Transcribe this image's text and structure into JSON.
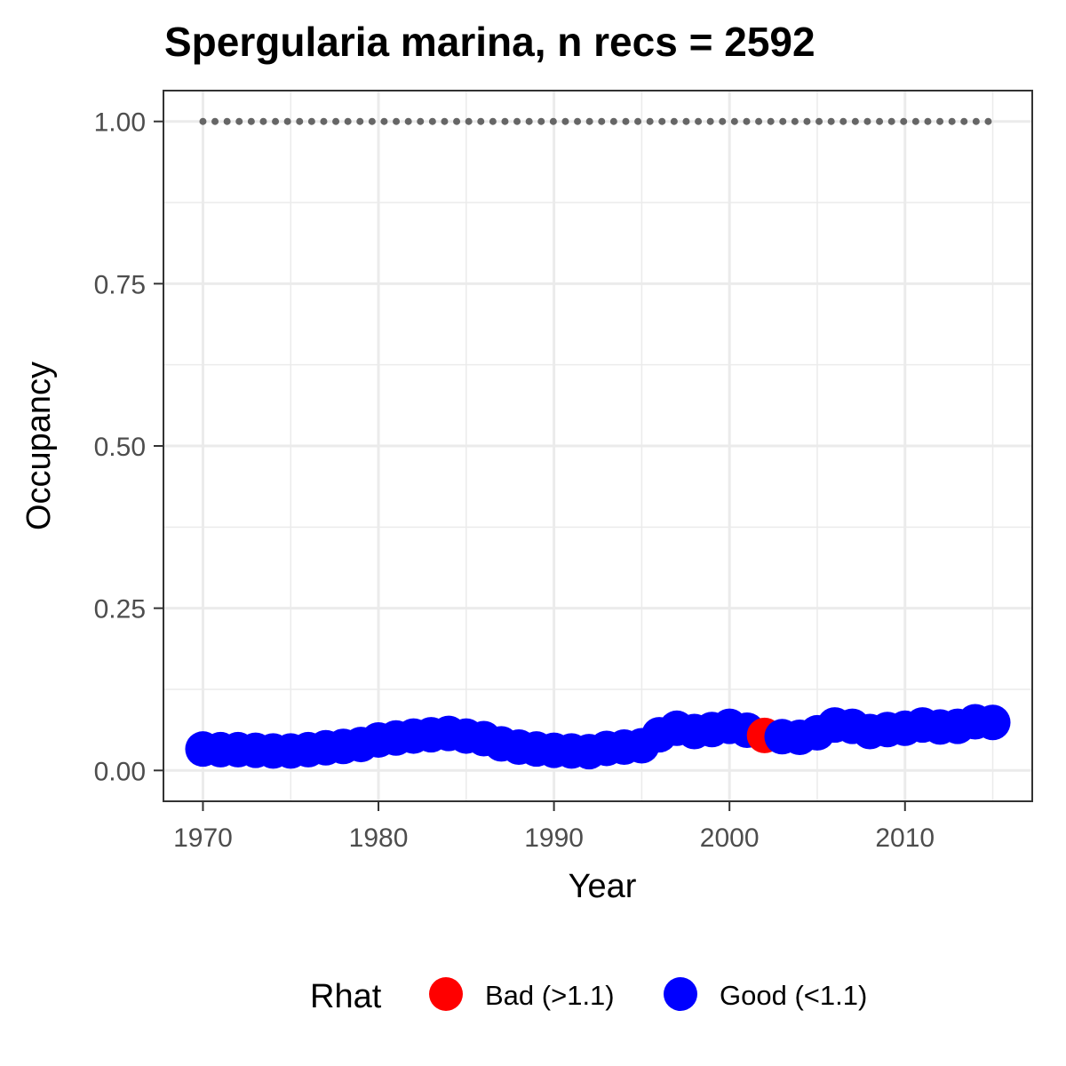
{
  "chart_data": {
    "type": "scatter",
    "title": "Spergularia marina, n recs = 2592",
    "xlabel": "Year",
    "ylabel": "Occupancy",
    "xlim": [
      1967.8,
      1917.2
    ],
    "ylim": [
      -0.0475,
      1.0475
    ],
    "x_ticks": [
      1970,
      1980,
      1990,
      2000,
      2010
    ],
    "x_tick_labels": [
      "1970",
      "1980",
      "1990",
      "2000",
      "2010"
    ],
    "y_ticks": [
      0,
      0.25,
      0.5,
      0.75,
      1.0
    ],
    "y_tick_labels": [
      "0.00",
      "0.25",
      "0.50",
      "0.75",
      "1.00"
    ],
    "grid": true,
    "legend": {
      "title": "Rhat",
      "position": "bottom",
      "entries": [
        {
          "label": "Bad (>1.1)",
          "color": "#ff0000"
        },
        {
          "label": "Good (<1.1)",
          "color": "#0000ff"
        }
      ]
    },
    "reference_line": {
      "y": 1.0,
      "style": "dotted",
      "color": "#666666"
    },
    "x": [
      1970,
      1971,
      1972,
      1973,
      1974,
      1975,
      1976,
      1977,
      1978,
      1979,
      1980,
      1981,
      1982,
      1983,
      1984,
      1985,
      1986,
      1987,
      1988,
      1989,
      1990,
      1991,
      1992,
      1993,
      1994,
      1995,
      1996,
      1997,
      1998,
      1999,
      2000,
      2001,
      2002,
      2003,
      2004,
      2005,
      2006,
      2007,
      2008,
      2009,
      2010,
      2011,
      2012,
      2013,
      2014,
      2015
    ],
    "y": [
      0.033,
      0.032,
      0.032,
      0.031,
      0.03,
      0.03,
      0.032,
      0.035,
      0.037,
      0.04,
      0.047,
      0.05,
      0.053,
      0.055,
      0.057,
      0.053,
      0.049,
      0.041,
      0.036,
      0.033,
      0.031,
      0.03,
      0.029,
      0.034,
      0.036,
      0.038,
      0.055,
      0.065,
      0.06,
      0.063,
      0.068,
      0.062,
      0.054,
      0.052,
      0.051,
      0.058,
      0.07,
      0.068,
      0.06,
      0.063,
      0.065,
      0.07,
      0.067,
      0.068,
      0.075,
      0.074
    ],
    "rhat": [
      "Good",
      "Good",
      "Good",
      "Good",
      "Good",
      "Good",
      "Good",
      "Good",
      "Good",
      "Good",
      "Good",
      "Good",
      "Good",
      "Good",
      "Good",
      "Good",
      "Good",
      "Good",
      "Good",
      "Good",
      "Good",
      "Good",
      "Good",
      "Good",
      "Good",
      "Good",
      "Good",
      "Good",
      "Good",
      "Good",
      "Good",
      "Good",
      "Bad",
      "Good",
      "Good",
      "Good",
      "Good",
      "Good",
      "Good",
      "Good",
      "Good",
      "Good",
      "Good",
      "Good",
      "Good",
      "Good"
    ],
    "colors": {
      "Good": "#0000ff",
      "Bad": "#ff0000"
    }
  }
}
